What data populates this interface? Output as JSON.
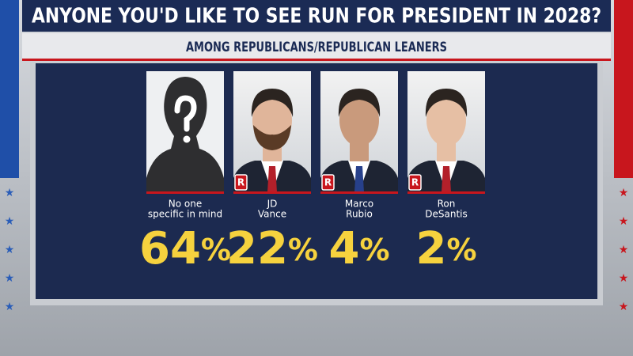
{
  "header": {
    "title": "ANYONE YOU'D LIKE TO SEE RUN FOR PRESIDENT IN 2028?",
    "subtitle": "AMONG REPUBLICANS/REPUBLICAN LEANERS"
  },
  "candidates": [
    {
      "name_lines": [
        "No one",
        "specific in mind"
      ],
      "share": "64%",
      "party": null
    },
    {
      "name_lines": [
        "JD",
        "Vance"
      ],
      "share": "22%",
      "party": "R"
    },
    {
      "name_lines": [
        "Marco",
        "Rubio"
      ],
      "share": "4%",
      "party": "R"
    },
    {
      "name_lines": [
        "Ron",
        "DeSantis"
      ],
      "share": "2%",
      "party": "R"
    }
  ]
}
